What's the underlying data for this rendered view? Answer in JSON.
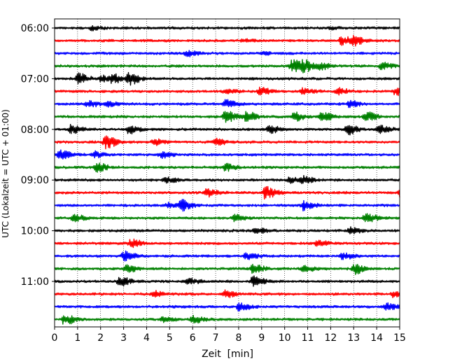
{
  "chart_data": {
    "type": "line",
    "subtype": "helicorder",
    "title": "",
    "xlabel": "Zeit  [min]",
    "ylabel": "UTC (Lokalzeit = UTC + 01:00)",
    "xlim": [
      0,
      15
    ],
    "x_ticks": [
      "0",
      "1",
      "2",
      "3",
      "4",
      "5",
      "6",
      "7",
      "8",
      "9",
      "10",
      "11",
      "12",
      "13",
      "14",
      "15"
    ],
    "y_ticks": [
      "06:00",
      "07:00",
      "08:00",
      "09:00",
      "10:00",
      "11:00"
    ],
    "grid": true,
    "line_interval_minutes": 15,
    "trace_colors": [
      "#000000",
      "#ff0000",
      "#0000ff",
      "#008000"
    ],
    "traces": [
      {
        "start": "06:00",
        "color": "#000000",
        "events": [
          [
            1.6,
            0.25
          ],
          [
            12.0,
            0.15
          ]
        ]
      },
      {
        "start": "06:15",
        "color": "#ff0000",
        "events": [
          [
            12.45,
            0.55
          ],
          [
            13.0,
            0.55
          ],
          [
            8.2,
            0.15
          ]
        ]
      },
      {
        "start": "06:30",
        "color": "#0000ff",
        "events": [
          [
            5.7,
            0.35
          ],
          [
            9.0,
            0.15
          ]
        ]
      },
      {
        "start": "06:45",
        "color": "#008000",
        "events": [
          [
            10.3,
            0.9
          ],
          [
            10.8,
            0.7
          ],
          [
            11.5,
            0.5
          ],
          [
            14.2,
            0.5
          ]
        ]
      },
      {
        "start": "07:00",
        "color": "#000000",
        "events": [
          [
            1.0,
            0.7
          ],
          [
            2.5,
            0.6
          ],
          [
            3.2,
            0.9
          ],
          [
            2.0,
            0.4
          ]
        ]
      },
      {
        "start": "07:15",
        "color": "#ff0000",
        "events": [
          [
            8.9,
            0.5
          ],
          [
            10.8,
            0.4
          ],
          [
            12.3,
            0.4
          ],
          [
            14.8,
            0.5
          ],
          [
            7.4,
            0.3
          ]
        ]
      },
      {
        "start": "07:30",
        "color": "#0000ff",
        "events": [
          [
            1.4,
            0.4
          ],
          [
            2.3,
            0.3
          ],
          [
            7.4,
            0.5
          ],
          [
            12.8,
            0.4
          ]
        ]
      },
      {
        "start": "07:45",
        "color": "#008000",
        "events": [
          [
            7.4,
            0.8
          ],
          [
            8.3,
            0.7
          ],
          [
            10.4,
            0.6
          ],
          [
            11.6,
            0.6
          ],
          [
            13.5,
            0.6
          ]
        ]
      },
      {
        "start": "08:00",
        "color": "#000000",
        "events": [
          [
            0.7,
            0.6
          ],
          [
            3.2,
            0.6
          ],
          [
            9.3,
            0.6
          ],
          [
            12.7,
            0.7
          ],
          [
            14.1,
            0.5
          ]
        ]
      },
      {
        "start": "08:15",
        "color": "#ff0000",
        "events": [
          [
            2.2,
            0.9
          ],
          [
            4.3,
            0.4
          ],
          [
            7.0,
            0.4
          ]
        ]
      },
      {
        "start": "08:30",
        "color": "#0000ff",
        "events": [
          [
            0.2,
            0.6
          ],
          [
            1.7,
            0.4
          ],
          [
            4.6,
            0.4
          ]
        ]
      },
      {
        "start": "08:45",
        "color": "#008000",
        "events": [
          [
            1.8,
            0.6
          ],
          [
            7.4,
            0.5
          ]
        ]
      },
      {
        "start": "09:00",
        "color": "#000000",
        "events": [
          [
            4.8,
            0.4
          ],
          [
            10.2,
            0.5
          ],
          [
            10.8,
            0.4
          ]
        ]
      },
      {
        "start": "09:15",
        "color": "#ff0000",
        "events": [
          [
            6.6,
            0.5
          ],
          [
            9.15,
            0.9
          ],
          [
            15.0,
            0.6
          ]
        ]
      },
      {
        "start": "09:30",
        "color": "#0000ff",
        "events": [
          [
            5.5,
            0.7
          ],
          [
            10.8,
            0.6
          ],
          [
            4.9,
            0.3
          ]
        ]
      },
      {
        "start": "09:45",
        "color": "#008000",
        "events": [
          [
            0.8,
            0.5
          ],
          [
            7.8,
            0.4
          ],
          [
            13.5,
            0.6
          ]
        ]
      },
      {
        "start": "10:00",
        "color": "#000000",
        "events": [
          [
            8.7,
            0.4
          ],
          [
            12.8,
            0.4
          ]
        ]
      },
      {
        "start": "10:15",
        "color": "#ff0000",
        "events": [
          [
            3.3,
            0.6
          ],
          [
            11.4,
            0.4
          ]
        ]
      },
      {
        "start": "10:30",
        "color": "#0000ff",
        "events": [
          [
            3.0,
            0.7
          ],
          [
            8.3,
            0.4
          ],
          [
            12.5,
            0.4
          ]
        ]
      },
      {
        "start": "10:45",
        "color": "#008000",
        "events": [
          [
            3.1,
            0.5
          ],
          [
            8.6,
            0.6
          ],
          [
            13.0,
            0.7
          ],
          [
            10.8,
            0.4
          ]
        ]
      },
      {
        "start": "11:00",
        "color": "#000000",
        "events": [
          [
            2.8,
            0.6
          ],
          [
            8.6,
            0.7
          ],
          [
            5.8,
            0.4
          ]
        ]
      },
      {
        "start": "11:15",
        "color": "#ff0000",
        "events": [
          [
            4.3,
            0.4
          ],
          [
            7.4,
            0.5
          ],
          [
            14.7,
            0.4
          ]
        ]
      },
      {
        "start": "11:30",
        "color": "#0000ff",
        "events": [
          [
            8.0,
            0.5
          ],
          [
            14.4,
            0.4
          ]
        ]
      },
      {
        "start": "11:45",
        "color": "#008000",
        "events": [
          [
            0.4,
            0.7
          ],
          [
            6.0,
            0.5
          ],
          [
            4.7,
            0.3
          ]
        ]
      }
    ]
  }
}
